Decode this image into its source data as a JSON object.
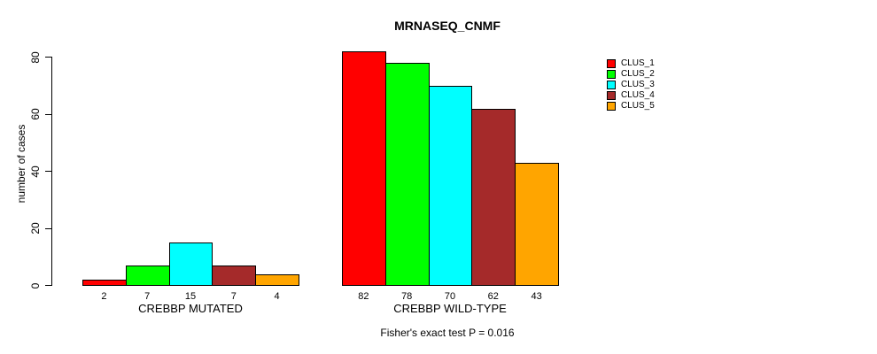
{
  "chart_data": {
    "type": "bar",
    "title": "MRNASEQ_CNMF",
    "ylabel": "number of cases",
    "xlabel": "",
    "ylim": [
      0,
      80
    ],
    "yticks": [
      0,
      20,
      40,
      60,
      80
    ],
    "grid": false,
    "legend_position": "topright",
    "categories": [
      "CREBBP MUTATED",
      "CREBBP WILD-TYPE"
    ],
    "series": [
      {
        "name": "CLUS_1",
        "color": "#FF0000",
        "values": [
          2,
          82
        ]
      },
      {
        "name": "CLUS_2",
        "color": "#00FF00",
        "values": [
          7,
          78
        ]
      },
      {
        "name": "CLUS_3",
        "color": "#00FFFF",
        "values": [
          15,
          70
        ]
      },
      {
        "name": "CLUS_4",
        "color": "#A52A2A",
        "values": [
          7,
          62
        ]
      },
      {
        "name": "CLUS_5",
        "color": "#FFA500",
        "values": [
          4,
          43
        ]
      }
    ],
    "bar_value_labels_shown": true,
    "annotation": "Fisher's exact test P = 0.016"
  }
}
